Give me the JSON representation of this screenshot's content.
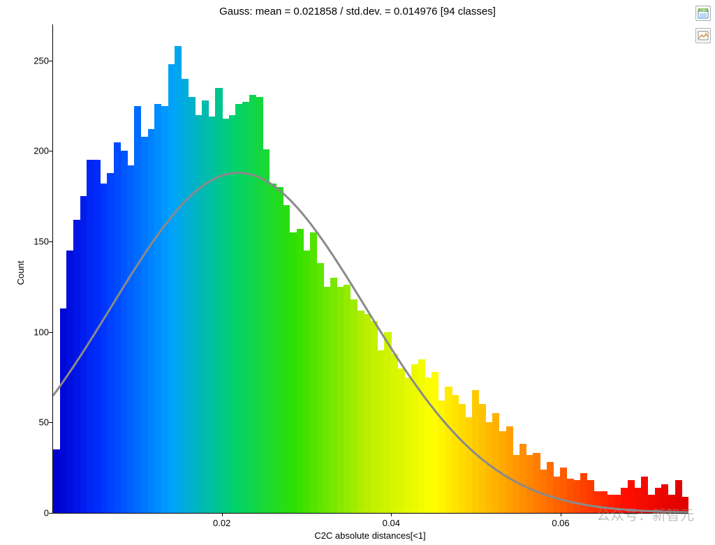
{
  "chart": {
    "type": "histogram",
    "title": "Gauss: mean = 0.021858 / std.dev. = 0.014976 [94 classes]",
    "title_fontsize": 15,
    "title_color": "#000000",
    "xlabel": "C2C absolute distances[<1]",
    "ylabel": "Count",
    "label_fontsize": 13,
    "background_color": "#ffffff",
    "axis_color": "#000000",
    "xlim": [
      0.0,
      0.075
    ],
    "ylim": [
      0,
      270
    ],
    "x_ticks": [
      0.02,
      0.04,
      0.06
    ],
    "y_ticks": [
      0,
      50,
      100,
      150,
      200,
      250
    ],
    "n_classes": 94,
    "bin_width": 0.000798,
    "gaussian": {
      "mean": 0.021858,
      "std": 0.014976,
      "peak_count": 188,
      "line_color": "#8a8a8a",
      "line_width": 3
    },
    "colormap": {
      "type": "rainbow",
      "stops": [
        {
          "t": 0.0,
          "color": "#0000d0"
        },
        {
          "t": 0.07,
          "color": "#0030ff"
        },
        {
          "t": 0.18,
          "color": "#00a0ff"
        },
        {
          "t": 0.28,
          "color": "#00d070"
        },
        {
          "t": 0.38,
          "color": "#30e000"
        },
        {
          "t": 0.5,
          "color": "#c0f000"
        },
        {
          "t": 0.6,
          "color": "#ffff00"
        },
        {
          "t": 0.7,
          "color": "#ffb000"
        },
        {
          "t": 0.8,
          "color": "#ff6000"
        },
        {
          "t": 0.9,
          "color": "#ff1000"
        },
        {
          "t": 1.0,
          "color": "#e00000"
        }
      ]
    },
    "values": [
      35,
      113,
      145,
      162,
      175,
      195,
      195,
      182,
      188,
      205,
      200,
      192,
      225,
      208,
      212,
      226,
      225,
      248,
      258,
      240,
      230,
      220,
      228,
      219,
      235,
      218,
      220,
      226,
      227,
      231,
      230,
      201,
      182,
      180,
      170,
      155,
      157,
      145,
      155,
      138,
      125,
      130,
      125,
      126,
      118,
      112,
      110,
      106,
      90,
      100,
      88,
      80,
      75,
      82,
      85,
      75,
      78,
      62,
      70,
      65,
      60,
      53,
      68,
      60,
      50,
      55,
      45,
      48,
      32,
      38,
      32,
      33,
      24,
      28,
      20,
      25,
      19,
      18,
      22,
      18,
      12,
      12,
      10,
      10,
      14,
      18,
      14,
      20,
      10,
      14,
      16,
      10,
      18,
      9
    ]
  },
  "toolbar": {
    "csv_button": "csv",
    "image_button": "img"
  },
  "watermark": {
    "text": "公众号：新智元",
    "color": "rgba(140,140,140,0.55)",
    "fontsize": 20
  }
}
